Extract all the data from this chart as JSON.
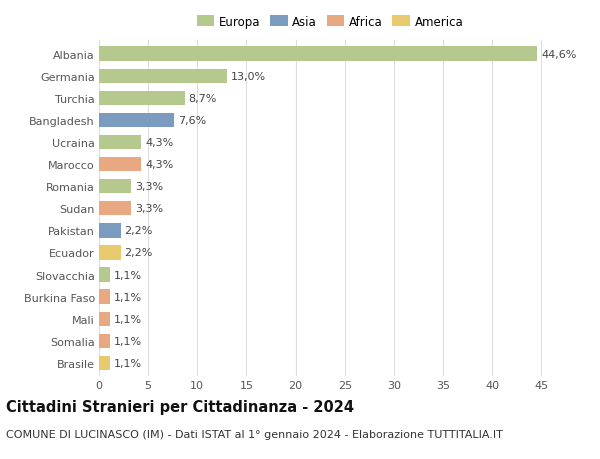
{
  "categories": [
    "Albania",
    "Germania",
    "Turchia",
    "Bangladesh",
    "Ucraina",
    "Marocco",
    "Romania",
    "Sudan",
    "Pakistan",
    "Ecuador",
    "Slovacchia",
    "Burkina Faso",
    "Mali",
    "Somalia",
    "Brasile"
  ],
  "values": [
    44.6,
    13.0,
    8.7,
    7.6,
    4.3,
    4.3,
    3.3,
    3.3,
    2.2,
    2.2,
    1.1,
    1.1,
    1.1,
    1.1,
    1.1
  ],
  "labels": [
    "44,6%",
    "13,0%",
    "8,7%",
    "7,6%",
    "4,3%",
    "4,3%",
    "3,3%",
    "3,3%",
    "2,2%",
    "2,2%",
    "1,1%",
    "1,1%",
    "1,1%",
    "1,1%",
    "1,1%"
  ],
  "colors": [
    "#b5c98e",
    "#b5c98e",
    "#b5c98e",
    "#7b9bbf",
    "#b5c98e",
    "#e8a882",
    "#b5c98e",
    "#e8a882",
    "#7b9bbf",
    "#e8c96e",
    "#b5c98e",
    "#e8a882",
    "#e8a882",
    "#e8a882",
    "#e8c96e"
  ],
  "legend_labels": [
    "Europa",
    "Asia",
    "Africa",
    "America"
  ],
  "legend_colors": [
    "#b5c98e",
    "#7b9bbf",
    "#e8a882",
    "#e8c96e"
  ],
  "title": "Cittadini Stranieri per Cittadinanza - 2024",
  "subtitle": "COMUNE DI LUCINASCO (IM) - Dati ISTAT al 1° gennaio 2024 - Elaborazione TUTTITALIA.IT",
  "xlim": [
    0,
    47
  ],
  "xticks": [
    0,
    5,
    10,
    15,
    20,
    25,
    30,
    35,
    40,
    45
  ],
  "background_color": "#ffffff",
  "grid_color": "#dddddd",
  "bar_height": 0.65,
  "title_fontsize": 10.5,
  "subtitle_fontsize": 8,
  "tick_fontsize": 8,
  "label_fontsize": 8,
  "legend_fontsize": 8.5
}
